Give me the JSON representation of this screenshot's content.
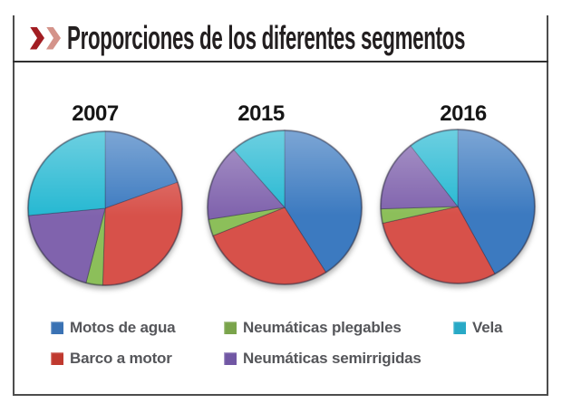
{
  "header": {
    "title": "Proporciones de los diferentes segmentos",
    "chevron_color_primary": "#a21d22",
    "chevron_color_secondary": "#d4938a"
  },
  "chart_data": {
    "type": "pie",
    "title": "Proporciones de los diferentes segmentos",
    "unit": "percent",
    "start_angle_deg": 0,
    "direction": "clockwise",
    "categories": [
      "Motos de agua",
      "Barco a motor",
      "Neumáticas plegables",
      "Neumáticas semirrigidas",
      "Vela"
    ],
    "slice_colors": [
      "#3c7ac0",
      "#d7514a",
      "#8cbf5a",
      "#8063ad",
      "#25b8d2"
    ],
    "pies": [
      {
        "year": "2007",
        "values": [
          19.5,
          31,
          3.5,
          19.5,
          26.5
        ]
      },
      {
        "year": "2015",
        "values": [
          41,
          28,
          3.5,
          16,
          11.5
        ]
      },
      {
        "year": "2016",
        "values": [
          42,
          29.5,
          3,
          15,
          10.5
        ]
      }
    ],
    "legend_position": "bottom"
  },
  "legend": {
    "items": [
      {
        "label": "Motos de agua",
        "color": "#3a72b4"
      },
      {
        "label": "Neumáticas plegables",
        "color": "#7aa44b"
      },
      {
        "label": "Vela",
        "color": "#28a9c6"
      },
      {
        "label": "Barco a motor",
        "color": "#c0392f"
      },
      {
        "label": "Neumáticas semirrigidas",
        "color": "#7157a4"
      }
    ]
  }
}
